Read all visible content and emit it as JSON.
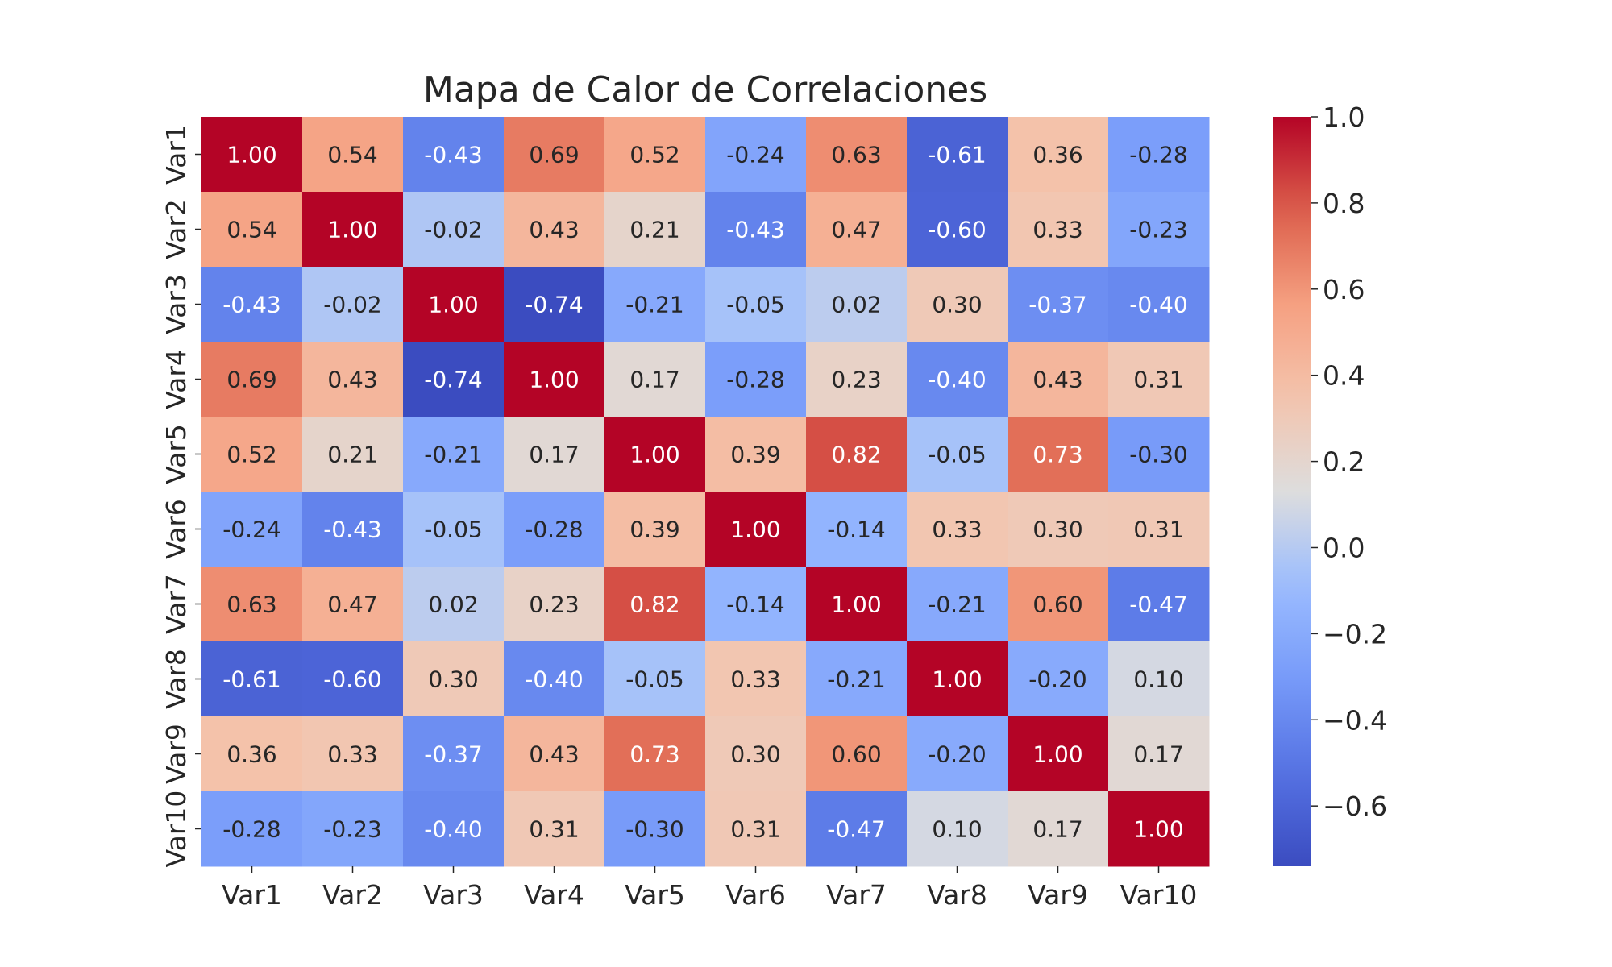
{
  "chart_data": {
    "type": "heatmap",
    "title": "Mapa de Calor de Correlaciones",
    "x_labels": [
      "Var1",
      "Var2",
      "Var3",
      "Var4",
      "Var5",
      "Var6",
      "Var7",
      "Var8",
      "Var9",
      "Var10"
    ],
    "y_labels": [
      "Var1",
      "Var2",
      "Var3",
      "Var4",
      "Var5",
      "Var6",
      "Var7",
      "Var8",
      "Var9",
      "Var10"
    ],
    "values": [
      [
        1.0,
        0.54,
        -0.43,
        0.69,
        0.52,
        -0.24,
        0.63,
        -0.61,
        0.36,
        -0.28
      ],
      [
        0.54,
        1.0,
        -0.02,
        0.43,
        0.21,
        -0.43,
        0.47,
        -0.6,
        0.33,
        -0.23
      ],
      [
        -0.43,
        -0.02,
        1.0,
        -0.74,
        -0.21,
        -0.05,
        0.02,
        0.3,
        -0.37,
        -0.4
      ],
      [
        0.69,
        0.43,
        -0.74,
        1.0,
        0.17,
        -0.28,
        0.23,
        -0.4,
        0.43,
        0.31
      ],
      [
        0.52,
        0.21,
        -0.21,
        0.17,
        1.0,
        0.39,
        0.82,
        -0.05,
        0.73,
        -0.3
      ],
      [
        -0.24,
        -0.43,
        -0.05,
        -0.28,
        0.39,
        1.0,
        -0.14,
        0.33,
        0.3,
        0.31
      ],
      [
        0.63,
        0.47,
        0.02,
        0.23,
        0.82,
        -0.14,
        1.0,
        -0.21,
        0.6,
        -0.47
      ],
      [
        -0.61,
        -0.6,
        0.3,
        -0.4,
        -0.05,
        0.33,
        -0.21,
        1.0,
        -0.2,
        0.1
      ],
      [
        0.36,
        0.33,
        -0.37,
        0.43,
        0.73,
        0.3,
        0.6,
        -0.2,
        1.0,
        0.17
      ],
      [
        -0.28,
        -0.23,
        -0.4,
        0.31,
        -0.3,
        0.31,
        -0.47,
        0.1,
        0.17,
        1.0
      ]
    ],
    "value_format": "0.00",
    "colormap": "coolwarm",
    "color_range": [
      -0.74,
      1.0
    ],
    "colorbar": {
      "ticks": [
        -0.6,
        -0.4,
        -0.2,
        0.0,
        0.2,
        0.4,
        0.6,
        0.8,
        1.0
      ],
      "tick_labels": [
        "−0.6",
        "−0.4",
        "−0.2",
        "0.0",
        "0.2",
        "0.4",
        "0.6",
        "0.8",
        "1.0"
      ]
    },
    "grid": false,
    "colors": {
      "low": "#3b4cc0",
      "mid": "#dddddd",
      "high": "#b40426",
      "text_dark": "#262626",
      "text_light": "#ffffff"
    }
  }
}
